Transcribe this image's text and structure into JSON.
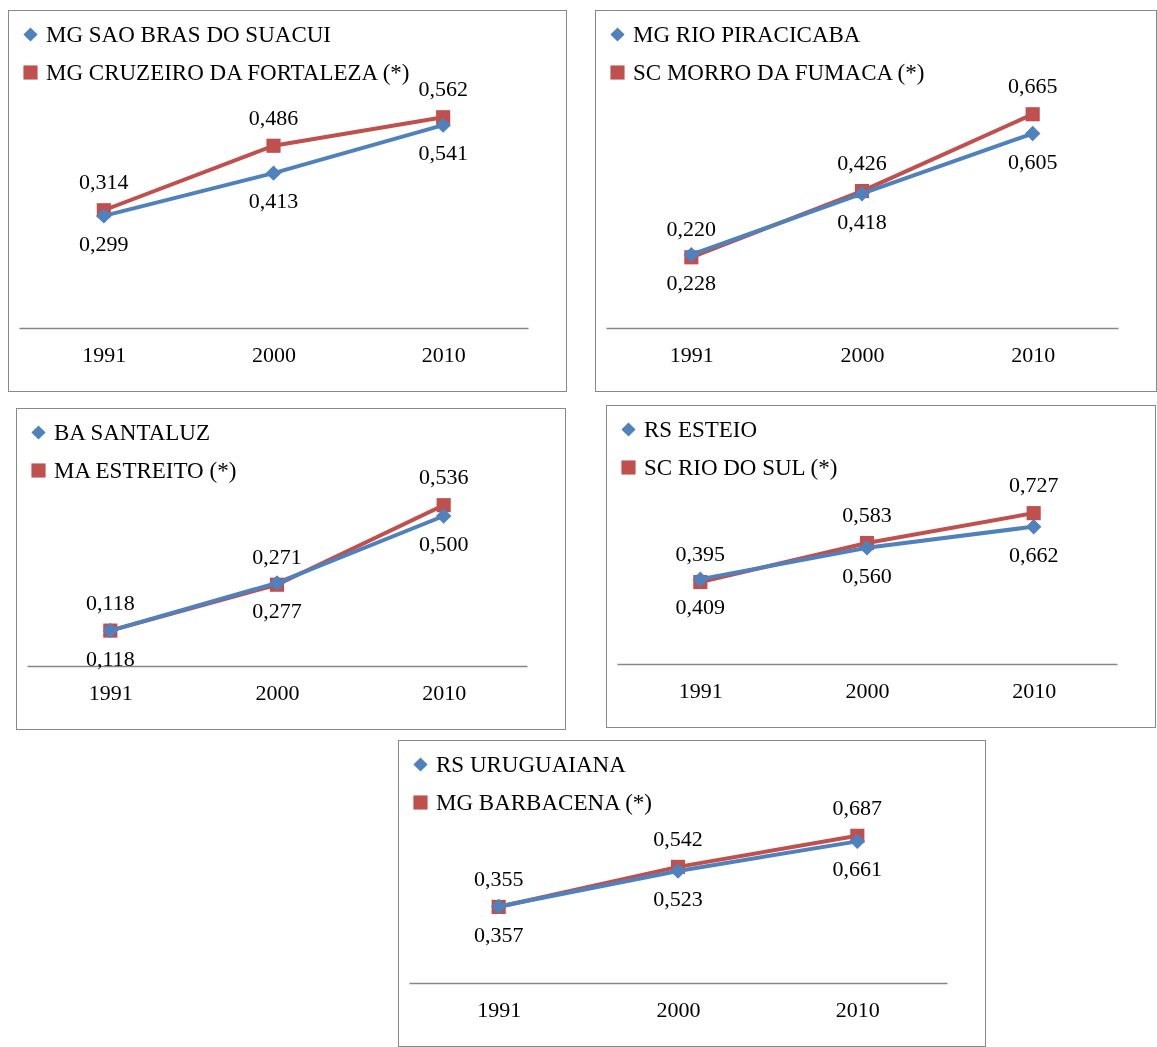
{
  "chart_data": [
    {
      "type": "line",
      "categories": [
        "1991",
        "2000",
        "2010"
      ],
      "tick_labels": "x",
      "legend": "top",
      "grid": false,
      "series": [
        {
          "name": "MG SAO BRAS DO SUACUI",
          "color": "#4f81bd",
          "marker": "diamond",
          "values": [
            0.299,
            0.413,
            0.541
          ],
          "value_labels": [
            "0,299",
            "0,413",
            "0,541"
          ]
        },
        {
          "name": "MG CRUZEIRO DA FORTALEZA (*)",
          "color": "#c0504d",
          "marker": "square",
          "values": [
            0.314,
            0.486,
            0.562
          ],
          "value_labels": [
            "0,314",
            "0,486",
            "0,562"
          ]
        }
      ]
    },
    {
      "type": "line",
      "categories": [
        "1991",
        "2000",
        "2010"
      ],
      "tick_labels": "x",
      "legend": "top",
      "grid": false,
      "series": [
        {
          "name": "MG RIO PIRACICABA",
          "color": "#4f81bd",
          "marker": "diamond",
          "values": [
            0.228,
            0.418,
            0.605
          ],
          "value_labels": [
            "0,228",
            "0,418",
            "0,605"
          ]
        },
        {
          "name": "SC MORRO DA FUMACA (*)",
          "color": "#c0504d",
          "marker": "square",
          "values": [
            0.22,
            0.426,
            0.665
          ],
          "value_labels": [
            "0,220",
            "0,426",
            "0,665"
          ]
        }
      ]
    },
    {
      "type": "line",
      "categories": [
        "1991",
        "2000",
        "2010"
      ],
      "tick_labels": "x",
      "legend": "top",
      "grid": false,
      "series": [
        {
          "name": "BA SANTALUZ",
          "color": "#4f81bd",
          "marker": "diamond",
          "values": [
            0.118,
            0.277,
            0.5
          ],
          "value_labels": [
            "0,118",
            "0,277",
            "0,500"
          ]
        },
        {
          "name": "MA ESTREITO (*)",
          "color": "#c0504d",
          "marker": "square",
          "values": [
            0.118,
            0.271,
            0.536
          ],
          "value_labels": [
            "0,118",
            "0,271",
            "0,536"
          ]
        }
      ]
    },
    {
      "type": "line",
      "categories": [
        "1991",
        "2000",
        "2010"
      ],
      "tick_labels": "x",
      "legend": "top",
      "grid": false,
      "series": [
        {
          "name": "RS ESTEIO",
          "color": "#4f81bd",
          "marker": "diamond",
          "values": [
            0.409,
            0.56,
            0.662
          ],
          "value_labels": [
            "0,409",
            "0,560",
            "0,662"
          ]
        },
        {
          "name": "SC RIO DO SUL (*)",
          "color": "#c0504d",
          "marker": "square",
          "values": [
            0.395,
            0.583,
            0.727
          ],
          "value_labels": [
            "0,395",
            "0,583",
            "0,727"
          ]
        }
      ]
    },
    {
      "type": "line",
      "categories": [
        "1991",
        "2000",
        "2010"
      ],
      "tick_labels": "x",
      "legend": "top",
      "grid": false,
      "series": [
        {
          "name": "RS URUGUAIANA",
          "color": "#4f81bd",
          "marker": "diamond",
          "values": [
            0.357,
            0.523,
            0.661
          ],
          "value_labels": [
            "0,357",
            "0,523",
            "0,661"
          ]
        },
        {
          "name": "MG BARBACENA (*)",
          "color": "#c0504d",
          "marker": "square",
          "values": [
            0.355,
            0.542,
            0.687
          ],
          "value_labels": [
            "0,355",
            "0,542",
            "0,687"
          ]
        }
      ]
    }
  ]
}
